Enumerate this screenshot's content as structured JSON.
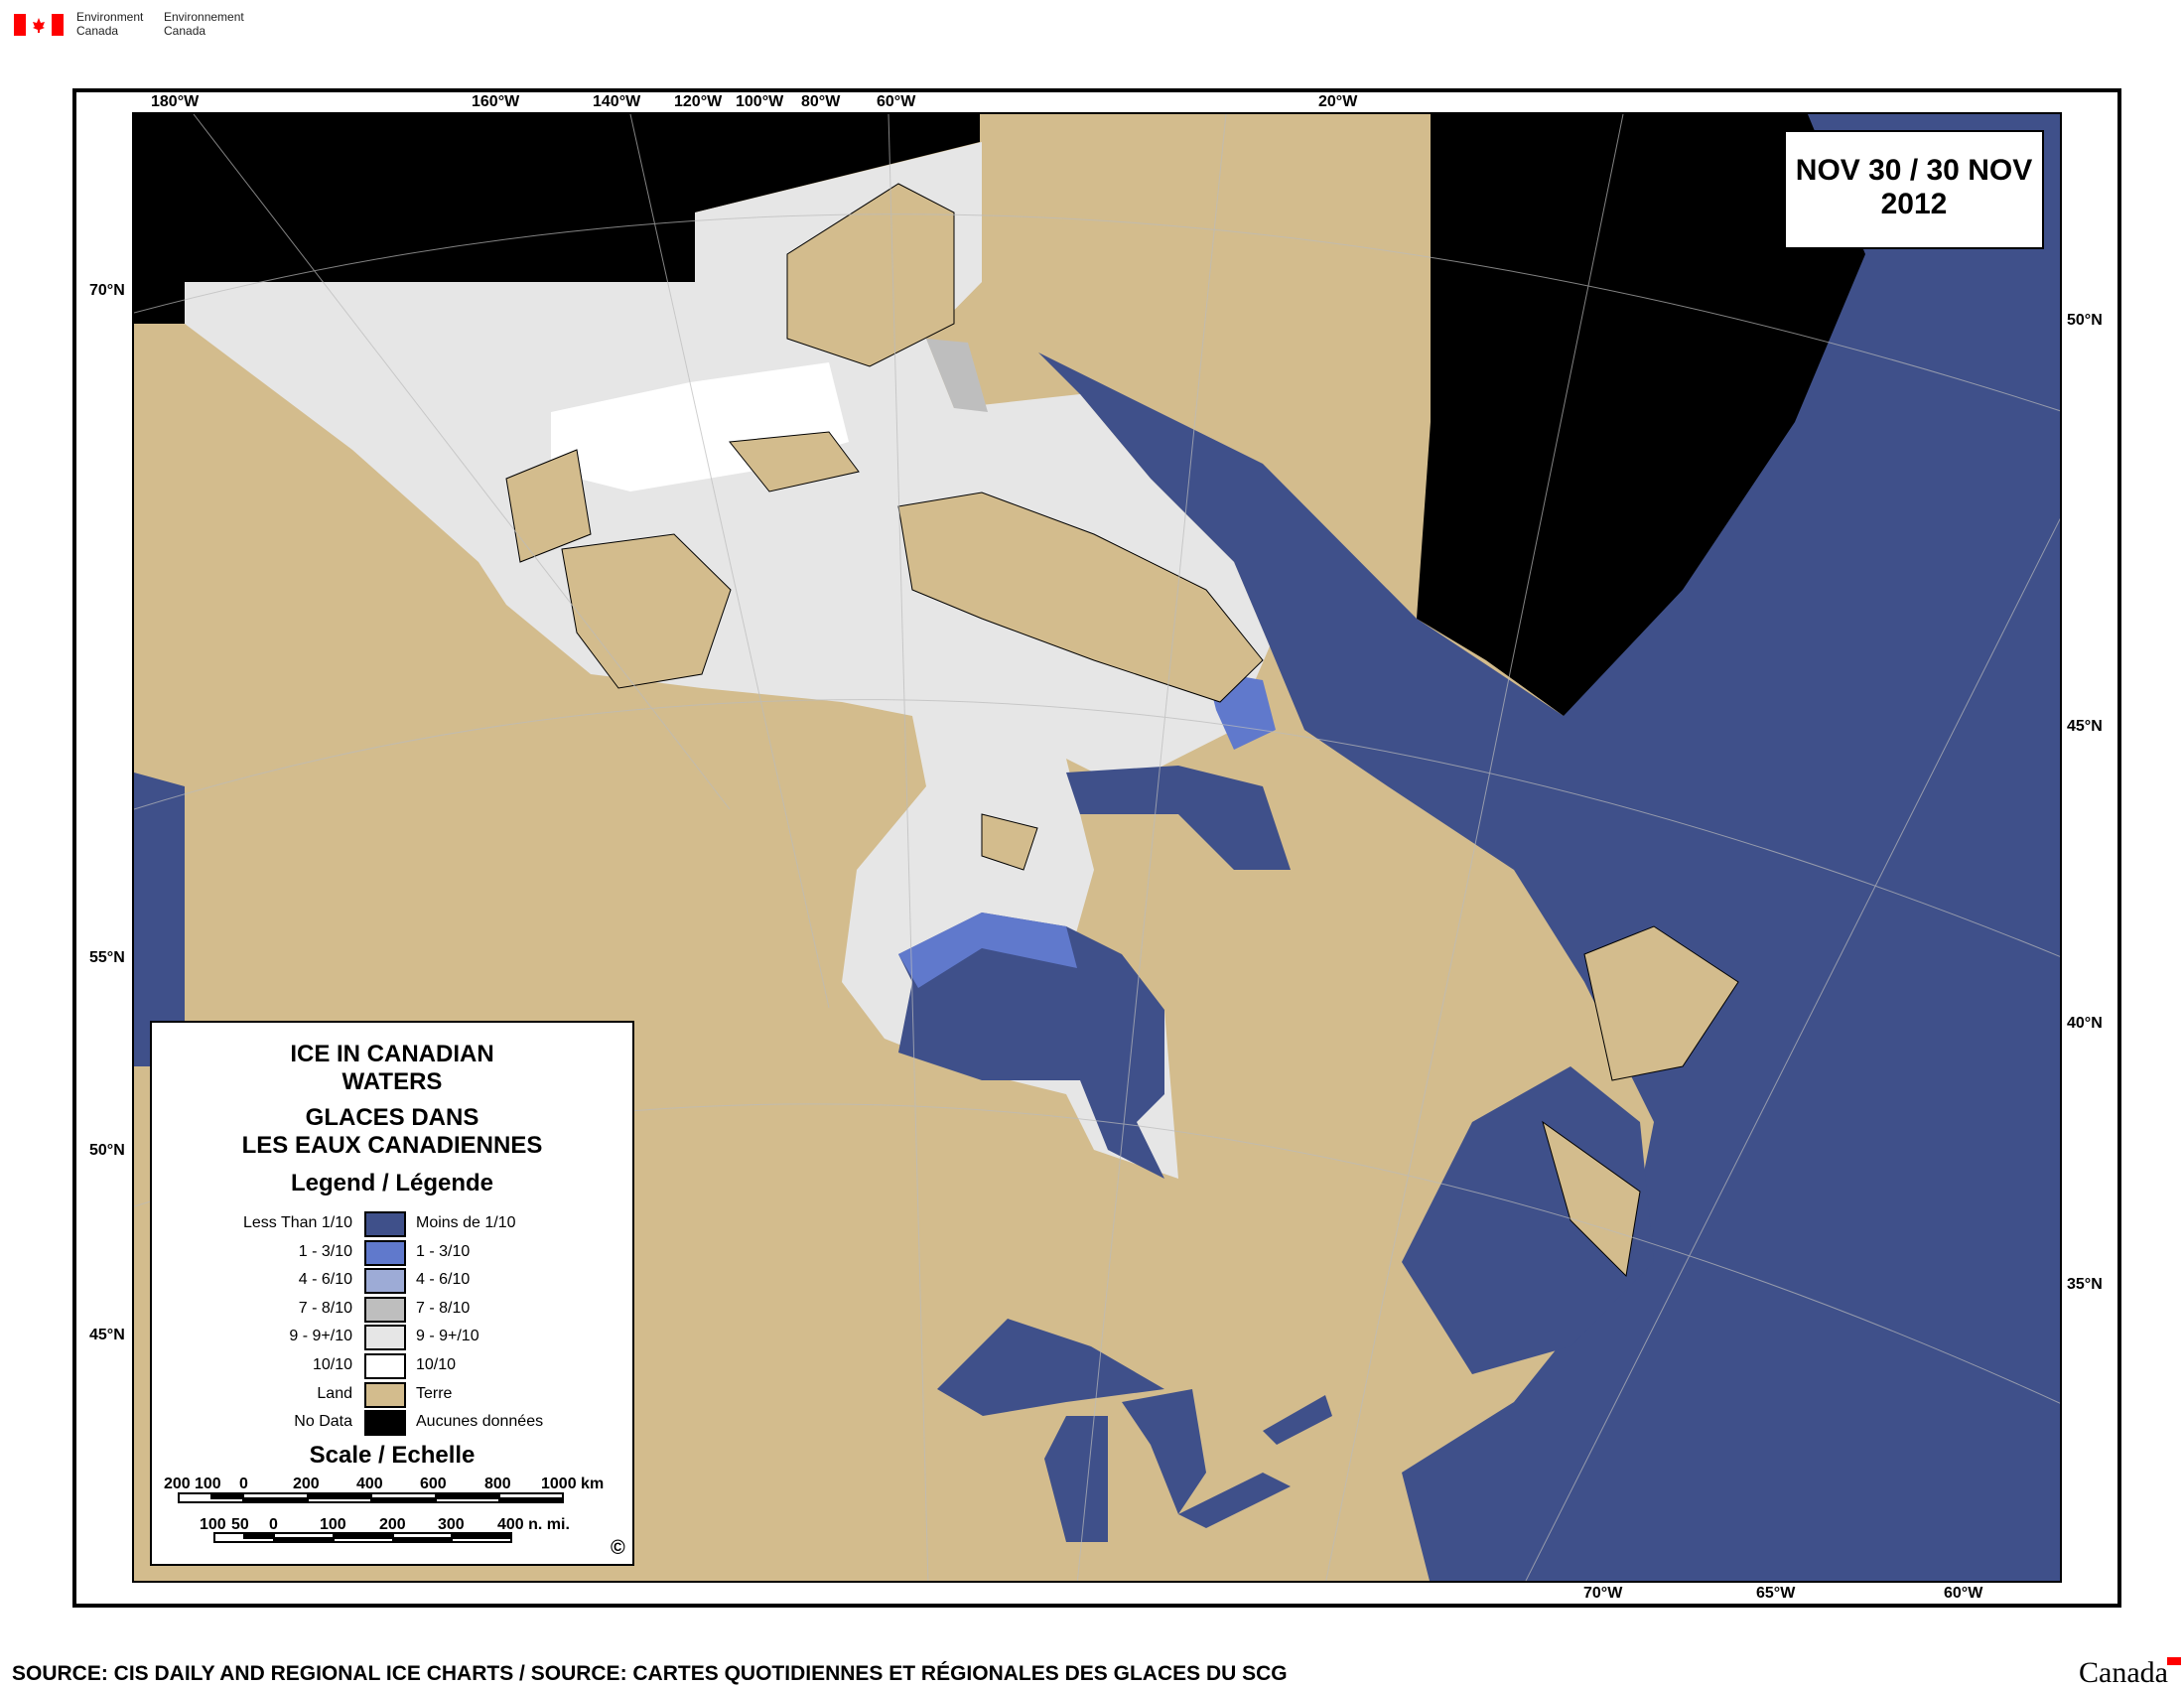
{
  "header": {
    "dept_en": [
      "Environment",
      "Canada"
    ],
    "dept_fr": [
      "Environnement",
      "Canada"
    ]
  },
  "date_box": {
    "line1": "NOV 30 / 30 NOV",
    "line2": "2012"
  },
  "graticule": {
    "top": [
      "180°W",
      "160°W",
      "140°W",
      "120°W",
      "100°W",
      "80°W",
      "60°W",
      "20°W"
    ],
    "left": [
      "70°N",
      "55°N",
      "50°N",
      "45°N"
    ],
    "right": [
      "50°N",
      "45°N",
      "40°N",
      "35°N"
    ],
    "bottom": [
      "70°W",
      "65°W",
      "60°W"
    ]
  },
  "legend": {
    "title_en": [
      "ICE IN CANADIAN",
      "WATERS"
    ],
    "title_fr": [
      "GLACES DANS",
      "LES EAUX CANADIENNES"
    ],
    "legend_heading": "Legend / Légende",
    "items": [
      {
        "en": "Less Than 1/10",
        "fr": "Moins de 1/10",
        "color": "#3F508A"
      },
      {
        "en": "1 - 3/10",
        "fr": "1 - 3/10",
        "color": "#6079CC"
      },
      {
        "en": "4 - 6/10",
        "fr": "4 - 6/10",
        "color": "#9DABD6"
      },
      {
        "en": "7 - 8/10",
        "fr": "7 - 8/10",
        "color": "#BEBEBE"
      },
      {
        "en": "9 - 9+/10",
        "fr": "9 - 9+/10",
        "color": "#E6E6E6"
      },
      {
        "en": "10/10",
        "fr": "10/10",
        "color": "#FFFFFF"
      },
      {
        "en": "Land",
        "fr": "Terre",
        "color": "#D3BC8D"
      },
      {
        "en": "No Data",
        "fr": "Aucunes données",
        "color": "#000000"
      }
    ],
    "scale_heading": "Scale / Echelle",
    "km_labels": [
      "200",
      "100",
      "0",
      "200",
      "400",
      "600",
      "800",
      "1000 km"
    ],
    "nmi_labels": [
      "100",
      "50",
      "0",
      "100",
      "200",
      "300",
      "400 n. mi."
    ],
    "copyright": "©"
  },
  "footer": {
    "source": "SOURCE: CIS DAILY AND REGIONAL ICE CHARTS / SOURCE: CARTES QUOTIDIENNES ET RÉGIONALES DES GLACES DU SCG",
    "wordmark": "Canada"
  },
  "colors": {
    "ocean": "#3F508A",
    "land": "#D3BC8D",
    "ice_9": "#E6E6E6",
    "ice_78": "#BEBEBE",
    "ice_13": "#6079CC",
    "no_data": "#000000",
    "flag_red": "#FF0000"
  }
}
